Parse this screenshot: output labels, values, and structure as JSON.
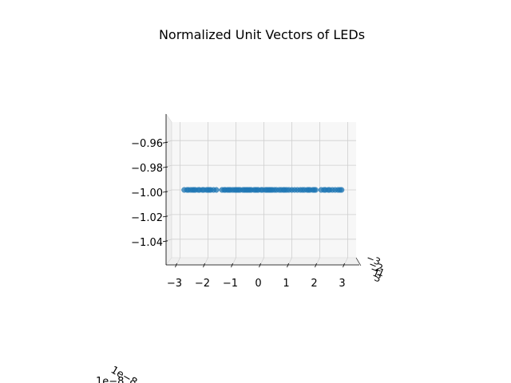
{
  "chart_data": {
    "type": "scatter",
    "projection": "3d",
    "title": "Normalized Unit Vectors of LEDs",
    "xlabel": "",
    "ylabel": "",
    "zlabel": "",
    "x_ticks": [
      "−3",
      "−2",
      "−1",
      "0",
      "1",
      "2",
      "3"
    ],
    "x_tick_values": [
      -3,
      -2,
      -1,
      0,
      1,
      2,
      3
    ],
    "z_ticks": [
      "−0.96",
      "−0.98",
      "−1.00",
      "−1.02",
      "−1.04"
    ],
    "z_tick_values": [
      -0.96,
      -0.98,
      -1.0,
      -1.02,
      -1.04
    ],
    "y_ticks": [
      "−3",
      "−2",
      "−1",
      "0",
      "1",
      "2",
      "3"
    ],
    "offset_texts": [
      "1e−8",
      "1e−8"
    ],
    "xlim": [
      -3.3,
      3.3
    ],
    "zlim": [
      -1.055,
      -0.945
    ],
    "grid": true,
    "marker_color": "#1f77b4",
    "points": {
      "x": [
        -2.85,
        -2.75,
        -2.7,
        -2.62,
        -2.55,
        -2.5,
        -2.45,
        -2.35,
        -2.3,
        -2.2,
        -2.15,
        -2.05,
        -2.0,
        -1.95,
        -1.9,
        -1.8,
        -1.7,
        -1.5,
        -1.42,
        -1.38,
        -1.3,
        -1.25,
        -1.2,
        -1.12,
        -1.05,
        -1.0,
        -0.95,
        -0.9,
        -0.85,
        -0.75,
        -0.7,
        -0.65,
        -0.6,
        -0.55,
        -0.5,
        -0.45,
        -0.35,
        -0.3,
        -0.25,
        -0.2,
        -0.1,
        -0.05,
        0.05,
        0.1,
        0.15,
        0.2,
        0.25,
        0.3,
        0.38,
        0.45,
        0.55,
        0.62,
        0.7,
        0.75,
        0.82,
        0.9,
        1.0,
        1.1,
        1.2,
        1.3,
        1.38,
        1.45,
        1.55,
        1.6,
        1.65,
        1.75,
        1.8,
        1.85,
        2.05,
        2.15,
        2.2,
        2.3,
        2.35,
        2.45,
        2.55,
        2.65,
        2.72,
        2.78
      ],
      "z": [
        -1.0,
        -1.0,
        -1.0,
        -1.0,
        -1.0,
        -1.0,
        -1.0,
        -1.0,
        -1.0,
        -1.0,
        -1.0,
        -1.0,
        -1.0,
        -1.0,
        -1.0,
        -1.0,
        -1.0,
        -1.0,
        -1.0,
        -1.0,
        -1.0,
        -1.0,
        -1.0,
        -1.0,
        -1.0,
        -1.0,
        -1.0,
        -1.0,
        -1.0,
        -1.0,
        -1.0,
        -1.0,
        -1.0,
        -1.0,
        -1.0,
        -1.0,
        -1.0,
        -1.0,
        -1.0,
        -1.0,
        -1.0,
        -1.0,
        -1.0,
        -1.0,
        -1.0,
        -1.0,
        -1.0,
        -1.0,
        -1.0,
        -1.0,
        -1.0,
        -1.0,
        -1.0,
        -1.0,
        -1.0,
        -1.0,
        -1.0,
        -1.0,
        -1.0,
        -1.0,
        -1.0,
        -1.0,
        -1.0,
        -1.0,
        -1.0,
        -1.0,
        -1.0,
        -1.0,
        -1.0,
        -1.0,
        -1.0,
        -1.0,
        -1.0,
        -1.0,
        -1.0,
        -1.0,
        -1.0,
        -1.0
      ]
    }
  }
}
